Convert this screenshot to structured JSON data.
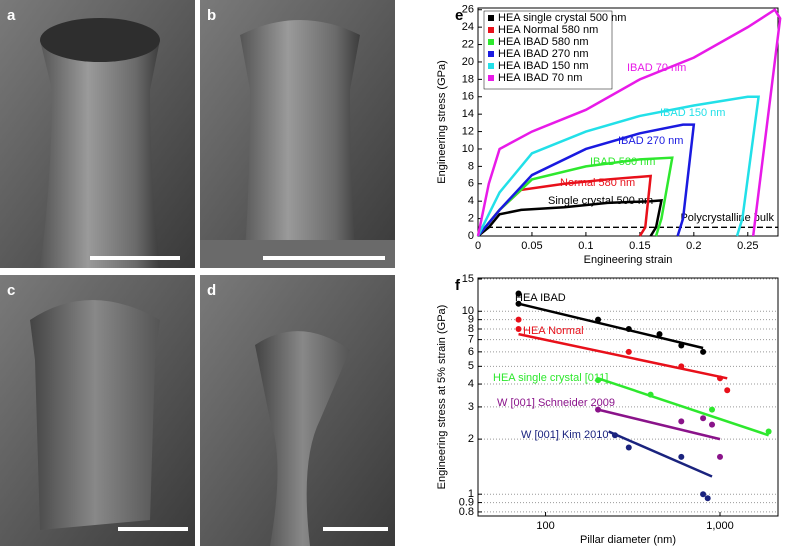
{
  "panels": [
    "a",
    "b",
    "c",
    "d"
  ],
  "chart_data": [
    {
      "type": "line",
      "label": "e",
      "xlabel": "Engineering strain",
      "ylabel": "Engineering stress (GPa)",
      "xlim": [
        0,
        0.278
      ],
      "ylim": [
        0,
        26.2
      ],
      "xticks": [
        0,
        0.05,
        0.1,
        0.15,
        0.2,
        0.25
      ],
      "yticks": [
        0,
        2,
        4,
        6,
        8,
        10,
        12,
        14,
        16,
        18,
        20,
        22,
        24,
        26
      ],
      "legend": "top-left",
      "reference_line": {
        "value": 1,
        "label": "Polycrystalline bulk"
      },
      "series": [
        {
          "name": "HEA single crystal 500 nm",
          "annotation": "Single crystal 500 nm",
          "color": "#000000",
          "x": [
            0,
            0.01,
            0.02,
            0.04,
            0.08,
            0.12,
            0.16,
            0.17,
            0.165,
            0.16
          ],
          "values": [
            0,
            1,
            2.5,
            3,
            3.3,
            3.8,
            4.0,
            4.1,
            1,
            0
          ]
        },
        {
          "name": "HEA Normal 580 nm",
          "annotation": "Normal 580 nm",
          "color": "#e8101a",
          "x": [
            0,
            0.02,
            0.04,
            0.08,
            0.12,
            0.15,
            0.16,
            0.155,
            0.15
          ],
          "values": [
            0,
            3,
            5.3,
            6,
            6.5,
            6.8,
            6.9,
            1,
            0
          ]
        },
        {
          "name": "HEA IBAD 580 nm",
          "annotation": "IBAD 580 nm",
          "color": "#2ee82e",
          "x": [
            0,
            0.02,
            0.05,
            0.1,
            0.15,
            0.18,
            0.17,
            0.165
          ],
          "values": [
            0,
            3,
            6.5,
            8,
            8.8,
            9,
            2,
            0
          ]
        },
        {
          "name": "HEA IBAD 270 nm",
          "annotation": "IBAD 270 nm",
          "color": "#1a1ae0",
          "x": [
            0,
            0.02,
            0.05,
            0.1,
            0.15,
            0.19,
            0.2,
            0.19,
            0.185
          ],
          "values": [
            0,
            3,
            7,
            10,
            11.8,
            12.8,
            12.8,
            2,
            0
          ]
        },
        {
          "name": "HEA IBAD 150 nm",
          "annotation": "IBAD 150 nm",
          "color": "#22e0e8",
          "x": [
            0,
            0.02,
            0.05,
            0.1,
            0.15,
            0.2,
            0.25,
            0.26,
            0.245,
            0.24
          ],
          "values": [
            0,
            5,
            9.5,
            12,
            13.8,
            15,
            16,
            16,
            2,
            0
          ]
        },
        {
          "name": "HEA IBAD 70 nm",
          "annotation": "IBAD 70 nm",
          "color": "#e81ae8",
          "x": [
            0,
            0.01,
            0.02,
            0.05,
            0.1,
            0.15,
            0.2,
            0.25,
            0.275,
            0.28,
            0.26,
            0.255
          ],
          "values": [
            0,
            6,
            10,
            12,
            14.5,
            18,
            20.5,
            24,
            26,
            25,
            5,
            0
          ]
        }
      ]
    },
    {
      "type": "scatter",
      "label": "f",
      "xlabel": "Pillar diameter (nm)",
      "ylabel": "Engineering stress at 5% strain (GPa)",
      "log_x": true,
      "log_y": true,
      "grid": "y",
      "xlim": [
        41,
        2150
      ],
      "ylim": [
        0.76,
        15.2
      ],
      "xticks": [
        100,
        {
          "value": 1000,
          "label": "1,000"
        }
      ],
      "yticks": [
        0.8,
        0.9,
        1,
        2,
        3,
        4,
        5,
        6,
        7,
        8,
        9,
        10,
        15
      ],
      "series": [
        {
          "name": "HEA IBAD",
          "color": "#000000",
          "x": [
            70,
            70,
            200,
            300,
            450,
            600,
            800
          ],
          "values": [
            12.5,
            11,
            9,
            8,
            7.5,
            6.5,
            6
          ],
          "fit": {
            "x": [
              70,
              800
            ],
            "values": [
              11,
              6.3
            ]
          }
        },
        {
          "name": "HEA Normal",
          "color": "#e8101a",
          "x": [
            70,
            70,
            300,
            600,
            1000,
            1100
          ],
          "values": [
            9,
            8,
            6,
            5,
            4.3,
            3.7
          ],
          "fit": {
            "x": [
              70,
              1100
            ],
            "values": [
              7.5,
              4.3
            ]
          }
        },
        {
          "name": "HEA single crystal [011]",
          "color": "#2ee82e",
          "x": [
            200,
            400,
            900,
            1900
          ],
          "values": [
            4.2,
            3.5,
            2.9,
            2.2
          ],
          "fit": {
            "x": [
              200,
              1900
            ],
            "values": [
              4.3,
              2.1
            ]
          }
        },
        {
          "name": "W [001] Schneider 2009",
          "color": "#8a138a",
          "x": [
            200,
            600,
            800,
            900,
            1000
          ],
          "values": [
            2.9,
            2.5,
            2.6,
            2.4,
            1.6
          ],
          "fit": {
            "x": [
              200,
              1000
            ],
            "values": [
              2.9,
              2.0
            ]
          }
        },
        {
          "name": "W [001] Kim 2010",
          "color": "#1a237e",
          "x": [
            250,
            300,
            600,
            800,
            850
          ],
          "values": [
            2.1,
            1.8,
            1.6,
            1.0,
            0.95
          ],
          "fit": {
            "x": [
              230,
              900
            ],
            "values": [
              2.2,
              1.25
            ]
          }
        }
      ]
    }
  ]
}
